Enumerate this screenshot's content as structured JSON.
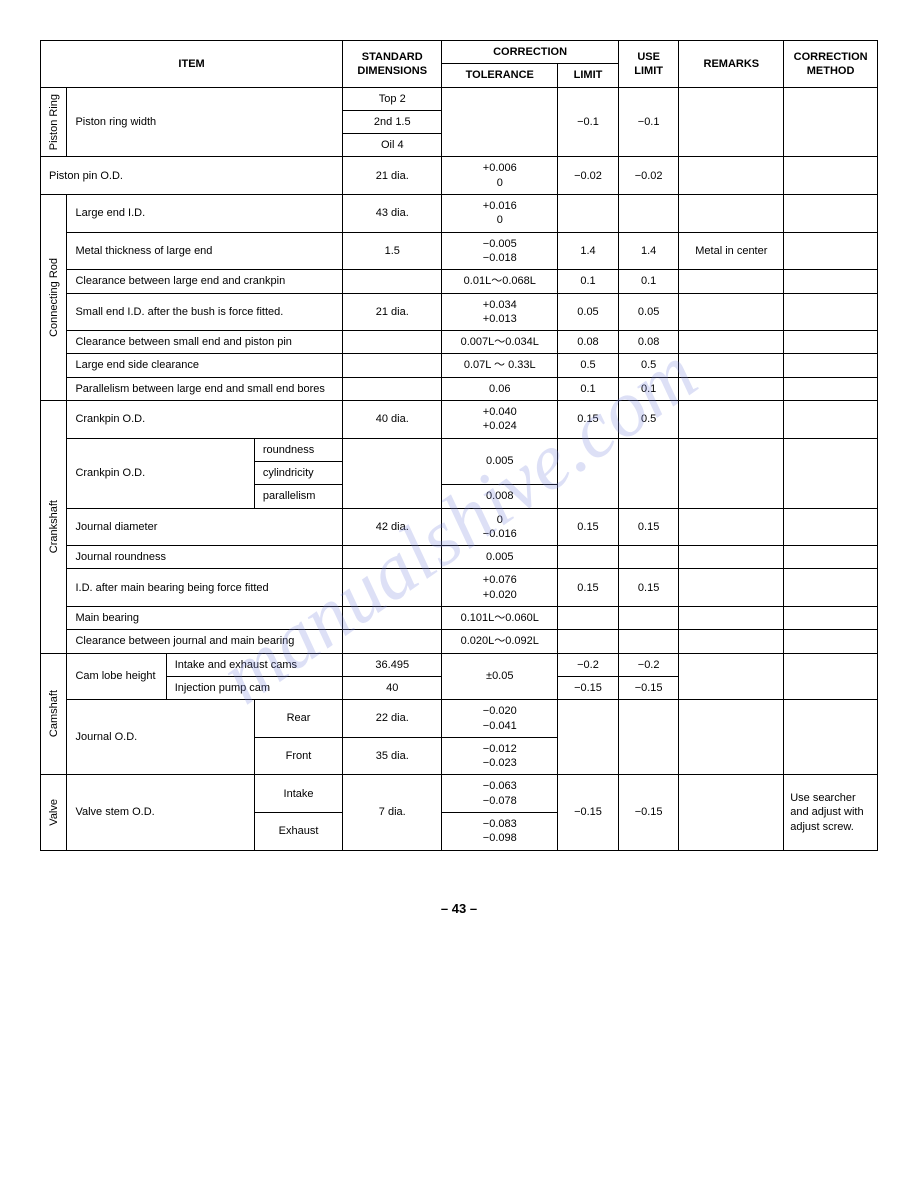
{
  "header": {
    "item": "ITEM",
    "standard": "STANDARD DIMENSIONS",
    "correction": "CORRECTION",
    "tolerance": "TOLERANCE",
    "limit": "LIMIT",
    "use_limit": "USE LIMIT",
    "remarks": "REMARKS",
    "method": "CORRECTION METHOD"
  },
  "categories": {
    "piston_ring": "Piston Ring",
    "connecting_rod": "Connecting Rod",
    "crankshaft": "Crankshaft",
    "camshaft": "Camshaft",
    "valve": "Valve"
  },
  "rows": {
    "r1": {
      "item": "Piston ring width",
      "std1": "Top  2",
      "std2": "2nd  1.5",
      "std3": "Oil   4",
      "limit": "−0.1",
      "use": "−0.1"
    },
    "r2": {
      "item": "Piston pin O.D.",
      "std": "21 dia.",
      "tol": "+0.006\n0",
      "limit": "−0.02",
      "use": "−0.02"
    },
    "r3": {
      "item": "Large end I.D.",
      "std": "43 dia.",
      "tol": "+0.016\n0"
    },
    "r4": {
      "item": "Metal thickness of large end",
      "std": "1.5",
      "tol": "−0.005\n−0.018",
      "limit": "1.4",
      "use": "1.4",
      "remarks": "Metal in center"
    },
    "r5": {
      "item": "Clearance between large end and crankpin",
      "tol": "0.01L～0.068L",
      "limit": "0.1",
      "use": "0.1"
    },
    "r6": {
      "item": "Small end I.D. after the bush is force fitted.",
      "std": "21 dia.",
      "tol": "+0.034\n+0.013",
      "limit": "0.05",
      "use": "0.05"
    },
    "r7": {
      "item": "Clearance between small end and piston pin",
      "tol": "0.007L～0.034L",
      "limit": "0.08",
      "use": "0.08"
    },
    "r8": {
      "item": "Large end side clearance",
      "tol": "0.07L ～ 0.33L",
      "limit": "0.5",
      "use": "0.5"
    },
    "r9": {
      "item": "Parallelism between large end and small end bores",
      "tol": "0.06",
      "limit": "0.1",
      "use": "0.1"
    },
    "r10": {
      "item": "Crankpin O.D.",
      "std": "40 dia.",
      "tol": "+0.040\n+0.024",
      "limit": "0.15",
      "use": "0.5"
    },
    "r11": {
      "item": "Crankpin O.D.",
      "sub1": "roundness",
      "sub2": "cylindricity",
      "sub3": "parallelism",
      "tol1": "0.005",
      "tol2": "0.008"
    },
    "r12": {
      "item": "Journal diameter",
      "std": "42 dia.",
      "tol": "0\n−0.016",
      "limit": "0.15",
      "use": "0.15"
    },
    "r13": {
      "item": "Journal roundness",
      "tol": "0.005"
    },
    "r14": {
      "item": "I.D. after main bearing being force fitted",
      "tol": "+0.076\n+0.020",
      "limit": "0.15",
      "use": "0.15"
    },
    "r15": {
      "item": "Main bearing",
      "tol": "0.101L～0.060L"
    },
    "r16": {
      "item": "Clearance between journal and main bearing",
      "tol": "0.020L～0.092L"
    },
    "r17": {
      "item": "Cam lobe height",
      "sub1": "Intake and exhaust cams",
      "sub2": "Injection pump cam",
      "std1": "36.495",
      "std2": "40",
      "tol": "±0.05",
      "limit1": "−0.2",
      "use1": "−0.2",
      "limit2": "−0.15",
      "use2": "−0.15"
    },
    "r18": {
      "item": "Journal O.D.",
      "sub1": "Rear",
      "sub2": "Front",
      "std1": "22 dia.",
      "std2": "35 dia.",
      "tol1": "−0.020\n−0.041",
      "tol2": "−0.012\n−0.023"
    },
    "r19": {
      "item": "Valve stem O.D.",
      "sub1": "Intake",
      "sub2": "Exhaust",
      "std": "7 dia.",
      "tol1": "−0.063\n−0.078",
      "tol2": "−0.083\n−0.098",
      "limit": "−0.15",
      "use": "−0.15",
      "method": "Use searcher and adjust with adjust screw."
    }
  },
  "page": "– 43 –",
  "watermark": "manualshive.com"
}
